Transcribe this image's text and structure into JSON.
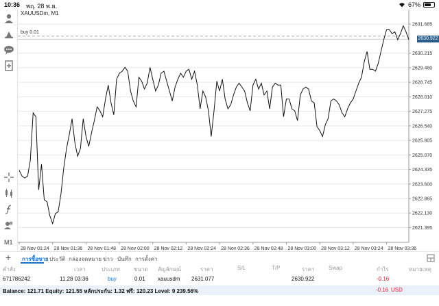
{
  "status_bar": {
    "time": "10:36",
    "date": "พฤ. 28 พ.ย.",
    "battery": "67%",
    "battery_level": 0.67
  },
  "chart": {
    "symbol": "XAUUSDm, M1",
    "order_label": "buy 0.01",
    "current_price": "2630.922",
    "timeframe": "M1",
    "colors": {
      "line": "#111111",
      "grid": "#e6e6e6",
      "price_tag": "#2b5d8a",
      "order_line": "#aaaaaa"
    }
  },
  "chart_data": {
    "type": "line",
    "ylim": [
      2620.65,
      2632.42
    ],
    "y_ticks": [
      "2631.685",
      "2630.215",
      "2629.480",
      "2628.745",
      "2628.010",
      "2627.275",
      "2626.540",
      "2625.805",
      "2625.070",
      "2624.335",
      "2623.600",
      "2622.865",
      "2622.130",
      "2621.395"
    ],
    "y_tick_values": [
      2631.685,
      2630.215,
      2629.48,
      2628.745,
      2628.01,
      2627.275,
      2626.54,
      2625.805,
      2625.07,
      2624.335,
      2623.6,
      2622.865,
      2622.13,
      2621.395
    ],
    "x_ticks": [
      "28 Nov 01:24",
      "28 Nov 01:36",
      "28 Nov 01:48",
      "28 Nov 02:00",
      "28 Nov 02:12",
      "28 Nov 02:24",
      "28 Nov 02:36",
      "28 Nov 02:48",
      "28 Nov 03:00",
      "28 Nov 03:12",
      "28 Nov 03:24",
      "28 Nov 03:36"
    ],
    "order_price": 2631.077,
    "current_price": 2630.922,
    "x_minutes": [
      0,
      1,
      2,
      3,
      4,
      5,
      6,
      7,
      8,
      9,
      10,
      11,
      12,
      13,
      14,
      15,
      16,
      17,
      18,
      19,
      20,
      21,
      22,
      23,
      24,
      25,
      26,
      27,
      28,
      29,
      30,
      31,
      32,
      33,
      34,
      35,
      36,
      37,
      38,
      39,
      40,
      41,
      42,
      43,
      44,
      45,
      46,
      47,
      48,
      49,
      50,
      51,
      52,
      53,
      54,
      55,
      56,
      57,
      58,
      59,
      60,
      61,
      62,
      63,
      64,
      65,
      66,
      67,
      68,
      69,
      70,
      71,
      72,
      73,
      74,
      75,
      76,
      77,
      78,
      79,
      80,
      81,
      82,
      83,
      84,
      85,
      86,
      87,
      88,
      89,
      90,
      91,
      92,
      93,
      94,
      95,
      96,
      97,
      98,
      99,
      100,
      101,
      102,
      103,
      104,
      105,
      106,
      107,
      108,
      109,
      110,
      111,
      112,
      113,
      114,
      115,
      116,
      117,
      118,
      119,
      120,
      121,
      122,
      123,
      124,
      125,
      126,
      127,
      128,
      129,
      130,
      131,
      132,
      133,
      134,
      135,
      136,
      137,
      138,
      139,
      140
    ],
    "values": [
      2624.3,
      2624.0,
      2623.9,
      2624.0,
      2624.8,
      2627.2,
      2627.0,
      2623.3,
      2624.6,
      2622.8,
      2622.7,
      2622.0,
      2621.6,
      2622.1,
      2622.2,
      2623.1,
      2624.4,
      2625.4,
      2626.1,
      2626.9,
      2625.7,
      2625.0,
      2625.4,
      2626.9,
      2626.0,
      2625.5,
      2626.2,
      2626.8,
      2627.5,
      2627.3,
      2627.0,
      2627.9,
      2628.6,
      2627.7,
      2627.1,
      2628.9,
      2629.2,
      2629.3,
      2629.5,
      2629.3,
      2628.3,
      2627.8,
      2627.5,
      2629.0,
      2628.8,
      2628.4,
      2628.7,
      2629.5,
      2628.9,
      2628.3,
      2628.6,
      2629.2,
      2629.3,
      2628.8,
      2628.3,
      2627.8,
      2628.5,
      2628.9,
      2629.2,
      2629.0,
      2629.3,
      2629.4,
      2628.9,
      2629.3,
      2628.6,
      2627.4,
      2628.3,
      2628.0,
      2627.3,
      2626.0,
      2627.3,
      2628.8,
      2628.3,
      2628.9,
      2627.9,
      2627.4,
      2627.6,
      2628.1,
      2628.5,
      2628.7,
      2628.5,
      2628.3,
      2627.7,
      2627.3,
      2628.6,
      2628.9,
      2628.4,
      2628.7,
      2628.1,
      2628.3,
      2627.4,
      2628.5,
      2628.7,
      2628.6,
      2628.6,
      2627.0,
      2627.9,
      2627.9,
      2627.4,
      2627.3,
      2626.8,
      2628.1,
      2628.4,
      2628.5,
      2628.4,
      2627.8,
      2627.7,
      2626.5,
      2626.3,
      2626.0,
      2626.6,
      2626.9,
      2627.8,
      2627.9,
      2627.8,
      2627.6,
      2627.2,
      2627.0,
      2627.4,
      2627.7,
      2627.9,
      2628.3,
      2628.7,
      2629.0,
      2629.8,
      2630.3,
      2629.4,
      2629.4,
      2629.3,
      2629.7,
      2630.3,
      2630.9,
      2631.4,
      2631.4,
      2631.2,
      2631.3,
      2630.9,
      2631.2,
      2631.6,
      2631.3,
      2630.9
    ],
    "grid": true
  },
  "toolbar_icons": [
    "person-add-icon",
    "trade-icon",
    "chat-icon",
    "new-doc-icon",
    "crosshair-icon",
    "candles-icon",
    "function-icon",
    "objects-icon"
  ],
  "tabs": {
    "items": [
      "การซื้อขาย",
      "ประวัติ",
      "กล่องจดหมาย",
      "ข่าว",
      "บันทึก",
      "การตั้งค่า"
    ],
    "active": 0
  },
  "table": {
    "headers": [
      "คำสั่ง",
      "เวลา",
      "ประเภท",
      "ขนาด",
      "สัญลักษณ์",
      "ราคา",
      "S/L",
      "T/P",
      "ราคา",
      "Swap",
      "กำไร",
      "หมายเหตุ"
    ],
    "row": {
      "order": "671786242",
      "time": "11.28 03:36",
      "type": "buy",
      "size": "0.01",
      "symbol": "xauusdm",
      "price_open": "2631.077",
      "price_current": "2630.922",
      "profit": "-0.16"
    }
  },
  "balance": {
    "text": "Balance: 121.71 Equity: 121.55 หลักประกัน: 1.32 ฟรี: 120.23 Level: 9 239.56%",
    "profit": "-0.16",
    "currency": "USD"
  }
}
